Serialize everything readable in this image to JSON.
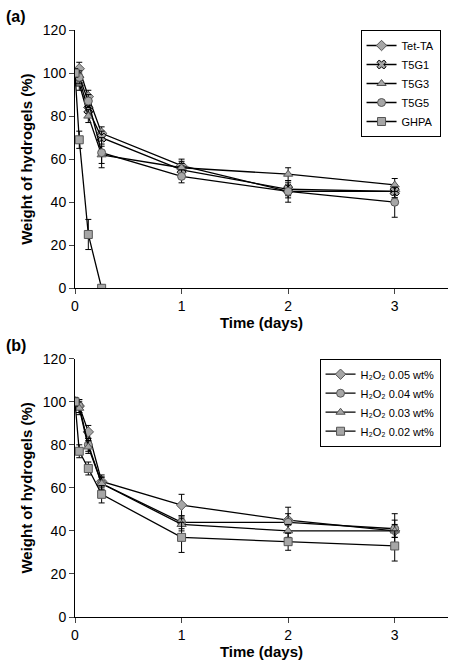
{
  "chart_data": [
    {
      "type": "line",
      "title": "(a)",
      "x_label": "Time (days)",
      "y_label": "Weight of hydrogels (%)",
      "x": [
        0,
        0.04,
        0.125,
        0.25,
        1,
        2,
        3
      ],
      "xlim": [
        0,
        3.5
      ],
      "xticks": [
        0,
        1,
        2,
        3
      ],
      "ylim": [
        0,
        120
      ],
      "yticks": [
        0,
        20,
        40,
        60,
        80,
        100,
        120
      ],
      "legend": "upper right",
      "grid": false,
      "series": [
        {
          "name": "Tet-TA",
          "color": "#a6a6a6",
          "marker": "diamond",
          "values": [
            100,
            102,
            89,
            72,
            57,
            45,
            45
          ],
          "errors": [
            2,
            3,
            3,
            3,
            3,
            3,
            3
          ]
        },
        {
          "name": "T5G1",
          "color": "#a6a6a6",
          "marker": "x",
          "values": [
            100,
            97,
            83,
            70,
            55,
            46,
            45
          ],
          "errors": [
            2,
            3,
            3,
            3,
            3,
            3,
            3
          ]
        },
        {
          "name": "T5G3",
          "color": "#a6a6a6",
          "marker": "triangle",
          "values": [
            100,
            95,
            80,
            62,
            56,
            53,
            48
          ],
          "errors": [
            2,
            3,
            3,
            4,
            3,
            3,
            3
          ]
        },
        {
          "name": "T5G5",
          "color": "#a6a6a6",
          "marker": "circle",
          "values": [
            100,
            98,
            87,
            63,
            52,
            45,
            40
          ],
          "errors": [
            2,
            3,
            3,
            7,
            3,
            5,
            7
          ]
        },
        {
          "name": "GHPA",
          "color": "#a6a6a6",
          "marker": "square",
          "values": [
            100,
            69,
            25,
            0,
            null,
            null,
            null
          ],
          "errors": [
            2,
            4,
            7,
            0,
            null,
            null,
            null
          ]
        }
      ]
    },
    {
      "type": "line",
      "title": "(b)",
      "x_label": "Time (days)",
      "y_label": "Weight of hydrogels (%)",
      "x": [
        0,
        0.04,
        0.125,
        0.25,
        1,
        2,
        3
      ],
      "xlim": [
        0,
        3.5
      ],
      "xticks": [
        0,
        1,
        2,
        3
      ],
      "ylim": [
        0,
        120
      ],
      "yticks": [
        0,
        20,
        40,
        60,
        80,
        100,
        120
      ],
      "legend": "upper right",
      "grid": false,
      "series": [
        {
          "name": "H₂O₂ 0.05 wt%",
          "color": "#a6a6a6",
          "marker": "diamond",
          "values": [
            100,
            98,
            86,
            63,
            52,
            45,
            40
          ],
          "errors": [
            2,
            3,
            3,
            3,
            5,
            6,
            8
          ]
        },
        {
          "name": "H₂O₂ 0.04 wt%",
          "color": "#a6a6a6",
          "marker": "circle",
          "values": [
            100,
            98,
            80,
            62,
            44,
            44,
            41
          ],
          "errors": [
            2,
            3,
            3,
            3,
            3,
            4,
            4
          ]
        },
        {
          "name": "H₂O₂ 0.03 wt%",
          "color": "#a6a6a6",
          "marker": "triangle",
          "values": [
            100,
            97,
            79,
            62,
            43,
            40,
            40
          ],
          "errors": [
            2,
            3,
            3,
            3,
            3,
            3,
            3
          ]
        },
        {
          "name": "H₂O₂ 0.02 wt%",
          "color": "#a6a6a6",
          "marker": "square",
          "values": [
            100,
            77,
            69,
            57,
            37,
            35,
            33
          ],
          "errors": [
            2,
            3,
            3,
            4,
            7,
            4,
            7
          ]
        }
      ]
    }
  ]
}
